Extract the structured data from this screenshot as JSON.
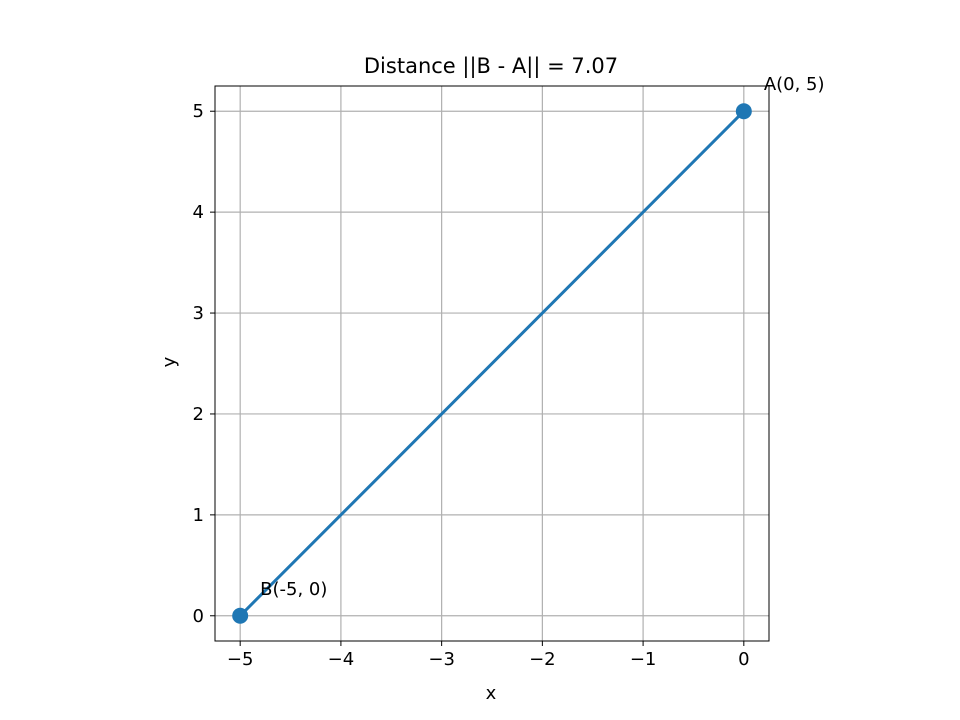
{
  "chart_data": {
    "type": "line",
    "title": "Distance ||B - A|| = 7.07",
    "xlabel": "x",
    "ylabel": "y",
    "xlim": [
      -5.25,
      0.25
    ],
    "ylim": [
      -0.25,
      5.25
    ],
    "xticks": [
      -5,
      -4,
      -3,
      -2,
      -1,
      0
    ],
    "yticks": [
      0,
      1,
      2,
      3,
      4,
      5
    ],
    "xtick_labels": [
      "−5",
      "−4",
      "−3",
      "−2",
      "−1",
      "0"
    ],
    "ytick_labels": [
      "0",
      "1",
      "2",
      "3",
      "4",
      "5"
    ],
    "grid": true,
    "points": [
      {
        "x": -5,
        "y": 0,
        "label": "B(-5, 0)"
      },
      {
        "x": 0,
        "y": 5,
        "label": "A(0, 5)"
      }
    ],
    "segment": {
      "from": [
        -5,
        0
      ],
      "to": [
        0,
        5
      ]
    },
    "color": "#1f77b4",
    "grid_color": "#b0b0b0"
  }
}
